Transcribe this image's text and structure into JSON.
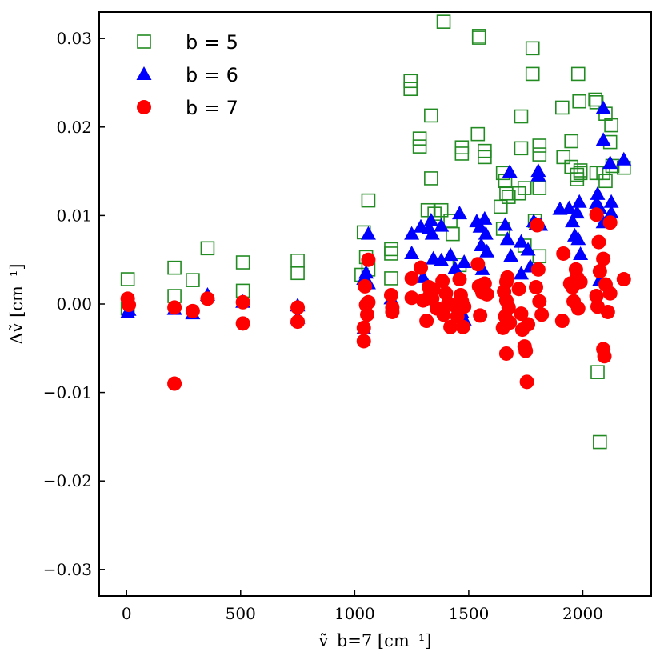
{
  "chart_data": {
    "type": "scatter",
    "title": "",
    "xlabel": "ṽ_b=7 [cm⁻¹]",
    "ylabel": "Δṽ [cm⁻¹]",
    "xlim": [
      -120,
      2300
    ],
    "ylim": [
      -0.033,
      0.033
    ],
    "xticks": [
      0,
      500,
      1000,
      1500,
      2000
    ],
    "xtick_labels": [
      "0",
      "500",
      "1000",
      "1500",
      "2000"
    ],
    "yticks": [
      -0.03,
      -0.02,
      -0.01,
      0.0,
      0.01,
      0.02,
      0.03
    ],
    "ytick_labels": [
      "−0.03",
      "−0.02",
      "−0.01",
      "0.00",
      "0.01",
      "0.02",
      "0.03"
    ],
    "legend_position": "top-left",
    "series": [
      {
        "name": "b = 5",
        "label": "b = 5",
        "marker": "square-open",
        "color": "#228B22",
        "points": [
          [
            5,
            0.0028
          ],
          [
            5,
            -0.0005
          ],
          [
            210,
            0.0041
          ],
          [
            210,
            0.0009
          ],
          [
            290,
            0.0027
          ],
          [
            355,
            0.0063
          ],
          [
            510,
            0.0047
          ],
          [
            510,
            0.0015
          ],
          [
            750,
            0.0049
          ],
          [
            750,
            0.0035
          ],
          [
            1030,
            0.0033
          ],
          [
            1040,
            0.0081
          ],
          [
            1050,
            0.0053
          ],
          [
            1060,
            0.0117
          ],
          [
            1060,
            0.0039
          ],
          [
            1160,
            0.0062
          ],
          [
            1160,
            0.0057
          ],
          [
            1160,
            0.0029
          ],
          [
            1245,
            0.0252
          ],
          [
            1245,
            0.0243
          ],
          [
            1285,
            0.0187
          ],
          [
            1285,
            0.0178
          ],
          [
            1320,
            0.0106
          ],
          [
            1335,
            0.0213
          ],
          [
            1335,
            0.0142
          ],
          [
            1350,
            0.0102
          ],
          [
            1380,
            0.0106
          ],
          [
            1390,
            0.0319
          ],
          [
            1420,
            0.0094
          ],
          [
            1430,
            0.0079
          ],
          [
            1460,
            0.0044
          ],
          [
            1470,
            0.0177
          ],
          [
            1470,
            0.017
          ],
          [
            1540,
            0.0192
          ],
          [
            1545,
            0.0303
          ],
          [
            1545,
            0.0301
          ],
          [
            1570,
            0.0173
          ],
          [
            1570,
            0.0166
          ],
          [
            1640,
            0.011
          ],
          [
            1650,
            0.0148
          ],
          [
            1650,
            0.0085
          ],
          [
            1660,
            0.0139
          ],
          [
            1665,
            0.0125
          ],
          [
            1675,
            0.0121
          ],
          [
            1720,
            0.0125
          ],
          [
            1730,
            0.0212
          ],
          [
            1730,
            0.0176
          ],
          [
            1745,
            0.0131
          ],
          [
            1745,
            0.0066
          ],
          [
            1780,
            0.0289
          ],
          [
            1780,
            0.026
          ],
          [
            1790,
            0.0094
          ],
          [
            1810,
            0.0179
          ],
          [
            1810,
            0.0169
          ],
          [
            1810,
            0.0131
          ],
          [
            1810,
            0.0054
          ],
          [
            1910,
            0.0222
          ],
          [
            1915,
            0.0166
          ],
          [
            1950,
            0.0155
          ],
          [
            1950,
            0.0184
          ],
          [
            1975,
            0.0146
          ],
          [
            1975,
            0.0141
          ],
          [
            1980,
            0.026
          ],
          [
            1985,
            0.0229
          ],
          [
            1990,
            0.0151
          ],
          [
            1990,
            0.0148
          ],
          [
            2055,
            0.0231
          ],
          [
            2060,
            0.0228
          ],
          [
            2060,
            0.0148
          ],
          [
            2065,
            -0.0077
          ],
          [
            2075,
            -0.0156
          ],
          [
            2090,
            0.0148
          ],
          [
            2100,
            0.0139
          ],
          [
            2100,
            0.0215
          ],
          [
            2120,
            0.0183
          ],
          [
            2125,
            0.0202
          ],
          [
            2130,
            0.0156
          ],
          [
            2180,
            0.0154
          ]
        ]
      },
      {
        "name": "b = 6",
        "label": "b = 6",
        "marker": "triangle-up",
        "color": "#0000FF",
        "points": [
          [
            5,
            -0.001
          ],
          [
            10,
            -0.0007
          ],
          [
            210,
            -0.0006
          ],
          [
            290,
            -0.0011
          ],
          [
            355,
            0.001
          ],
          [
            510,
            0.0002
          ],
          [
            750,
            -0.0002
          ],
          [
            750,
            -0.0016
          ],
          [
            1040,
            -0.0028
          ],
          [
            1040,
            0.0028
          ],
          [
            1050,
            0.0035
          ],
          [
            1060,
            0.0079
          ],
          [
            1060,
            0.0023
          ],
          [
            1160,
            0.0006
          ],
          [
            1250,
            0.0079
          ],
          [
            1250,
            0.0057
          ],
          [
            1290,
            0.0087
          ],
          [
            1300,
            0.003
          ],
          [
            1325,
            0.0085
          ],
          [
            1335,
            0.0094
          ],
          [
            1340,
            0.0079
          ],
          [
            1345,
            0.0051
          ],
          [
            1380,
            0.0088
          ],
          [
            1380,
            0.0049
          ],
          [
            1420,
            0.0055
          ],
          [
            1440,
            0.004
          ],
          [
            1460,
            0.0102
          ],
          [
            1470,
            -0.001
          ],
          [
            1480,
            0.0047
          ],
          [
            1480,
            -0.0018
          ],
          [
            1535,
            0.0093
          ],
          [
            1550,
            0.0087
          ],
          [
            1555,
            0.0066
          ],
          [
            1560,
            0.0039
          ],
          [
            1570,
            0.0096
          ],
          [
            1575,
            0.0079
          ],
          [
            1580,
            0.0059
          ],
          [
            1660,
            0.0089
          ],
          [
            1670,
            0.0073
          ],
          [
            1680,
            0.0149
          ],
          [
            1685,
            0.0054
          ],
          [
            1730,
            0.007
          ],
          [
            1730,
            0.0034
          ],
          [
            1760,
            0.0061
          ],
          [
            1770,
            0.0042
          ],
          [
            1785,
            0.0093
          ],
          [
            1795,
            0.009
          ],
          [
            1805,
            0.015
          ],
          [
            1805,
            0.0145
          ],
          [
            1815,
            0.0089
          ],
          [
            1900,
            0.0107
          ],
          [
            1940,
            0.0108
          ],
          [
            1955,
            0.0093
          ],
          [
            1965,
            0.0077
          ],
          [
            1975,
            0.0103
          ],
          [
            1980,
            0.0073
          ],
          [
            1985,
            0.0115
          ],
          [
            1990,
            0.0056
          ],
          [
            2060,
            0.0114
          ],
          [
            2065,
            0.0124
          ],
          [
            2075,
            0.0108
          ],
          [
            2075,
            0.0027
          ],
          [
            2090,
            0.0221
          ],
          [
            2090,
            0.0185
          ],
          [
            2090,
            0.0092
          ],
          [
            2120,
            0.0159
          ],
          [
            2125,
            0.0115
          ],
          [
            2125,
            0.0103
          ],
          [
            2180,
            0.0163
          ]
        ]
      },
      {
        "name": "b = 7",
        "label": "b = 7",
        "marker": "circle",
        "color": "#FF0000",
        "points": [
          [
            5,
            0.0006
          ],
          [
            10,
            -0.0001
          ],
          [
            210,
            -0.009
          ],
          [
            210,
            -0.0004
          ],
          [
            290,
            -0.0008
          ],
          [
            355,
            0.0006
          ],
          [
            510,
            0.0002
          ],
          [
            510,
            -0.0022
          ],
          [
            750,
            -0.0004
          ],
          [
            750,
            -0.002
          ],
          [
            1040,
            -0.0042
          ],
          [
            1040,
            -0.0027
          ],
          [
            1045,
            0.002
          ],
          [
            1050,
            -0.0001
          ],
          [
            1055,
            -0.0012
          ],
          [
            1060,
            0.005
          ],
          [
            1060,
            0.0002
          ],
          [
            1160,
            0.001
          ],
          [
            1165,
            -0.0004
          ],
          [
            1165,
            -0.0009
          ],
          [
            1250,
            0.0029
          ],
          [
            1250,
            0.0007
          ],
          [
            1290,
            0.0041
          ],
          [
            1300,
            0.0004
          ],
          [
            1315,
            -0.0019
          ],
          [
            1325,
            0.0019
          ],
          [
            1330,
            0.001
          ],
          [
            1340,
            0.0006
          ],
          [
            1345,
            0.0016
          ],
          [
            1360,
            -0.0005
          ],
          [
            1385,
            0.0026
          ],
          [
            1390,
            -0.0012
          ],
          [
            1400,
            0.0012
          ],
          [
            1410,
            0.0001
          ],
          [
            1420,
            -0.0026
          ],
          [
            1440,
            -0.0002
          ],
          [
            1450,
            -0.0014
          ],
          [
            1460,
            0.0028
          ],
          [
            1465,
            0.001
          ],
          [
            1470,
            0.0003
          ],
          [
            1475,
            -0.0026
          ],
          [
            1480,
            -0.0003
          ],
          [
            1540,
            0.0045
          ],
          [
            1545,
            0.002
          ],
          [
            1550,
            -0.0013
          ],
          [
            1560,
            0.0013
          ],
          [
            1570,
            0.0023
          ],
          [
            1580,
            0.0011
          ],
          [
            1650,
            -0.0027
          ],
          [
            1655,
            0.0014
          ],
          [
            1660,
            -0.0014
          ],
          [
            1665,
            0.0025
          ],
          [
            1665,
            0.0004
          ],
          [
            1665,
            -0.0056
          ],
          [
            1670,
            0.003
          ],
          [
            1675,
            -0.0004
          ],
          [
            1680,
            -0.0021
          ],
          [
            1720,
            0.0017
          ],
          [
            1730,
            -0.0011
          ],
          [
            1735,
            -0.0029
          ],
          [
            1745,
            -0.0048
          ],
          [
            1750,
            -0.0053
          ],
          [
            1755,
            -0.0088
          ],
          [
            1760,
            -0.0023
          ],
          [
            1795,
            0.0019
          ],
          [
            1800,
            0.0089
          ],
          [
            1805,
            0.0039
          ],
          [
            1810,
            0.0003
          ],
          [
            1820,
            -0.0012
          ],
          [
            1910,
            -0.0019
          ],
          [
            1915,
            0.0057
          ],
          [
            1945,
            0.0023
          ],
          [
            1955,
            0.0019
          ],
          [
            1960,
            0.0003
          ],
          [
            1970,
            0.0039
          ],
          [
            1975,
            0.003
          ],
          [
            1980,
            -0.0005
          ],
          [
            1990,
            0.0025
          ],
          [
            2060,
            0.0101
          ],
          [
            2060,
            0.0009
          ],
          [
            2065,
            -0.0003
          ],
          [
            2070,
            0.007
          ],
          [
            2075,
            0.0037
          ],
          [
            2090,
            0.0051
          ],
          [
            2090,
            -0.0051
          ],
          [
            2095,
            -0.0059
          ],
          [
            2100,
            0.0022
          ],
          [
            2110,
            -0.0009
          ],
          [
            2120,
            0.0092
          ],
          [
            2120,
            0.0012
          ],
          [
            2180,
            0.0028
          ]
        ]
      }
    ]
  }
}
